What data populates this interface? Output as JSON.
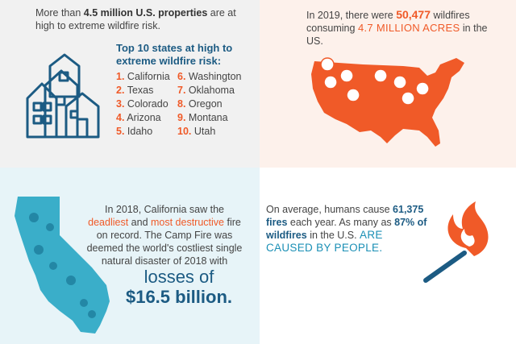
{
  "panel1": {
    "intro_pre": "More than ",
    "intro_bold": "4.5 million U.S. properties",
    "intro_post": " are at high to extreme wildfire risk.",
    "list_title": "Top 10 states at high to extreme wildfire risk:",
    "states": [
      {
        "num": "1.",
        "name": "California"
      },
      {
        "num": "6.",
        "name": "Washington"
      },
      {
        "num": "2.",
        "name": "Texas"
      },
      {
        "num": "7.",
        "name": "Oklahoma"
      },
      {
        "num": "3.",
        "name": "Colorado"
      },
      {
        "num": "8.",
        "name": "Oregon"
      },
      {
        "num": "4.",
        "name": "Arizona"
      },
      {
        "num": "9.",
        "name": "Montana"
      },
      {
        "num": "5.",
        "name": "Idaho"
      },
      {
        "num": "10.",
        "name": "Utah"
      }
    ]
  },
  "panel2": {
    "pre": "In 2019, there were ",
    "wildfires_count": "50,477",
    "mid": " wildfires consuming ",
    "acres": "4.7 MILLION ACRES",
    "post": " in the US."
  },
  "panel3": {
    "t1": "In 2018, California saw the ",
    "deadliest": "deadliest",
    "t2": " and ",
    "destructive": "most destructive",
    "t3": " fire on record. The Camp Fire was deemed the world's costliest single natural disaster of 2018 with",
    "losses": "losses of",
    "amount": "$16.5 billion."
  },
  "panel4": {
    "t1": "On average, humans cause ",
    "fires": "61,375 fires",
    "t2": " each year. As many as ",
    "pct": "87% of wildfires",
    "t3": " in the U.S. ",
    "caused": "ARE CAUSED BY PEOPLE."
  },
  "colors": {
    "orange": "#f05a28",
    "navy": "#1c5b83",
    "teal": "#1a8fb5",
    "california": "#3aaec9"
  }
}
